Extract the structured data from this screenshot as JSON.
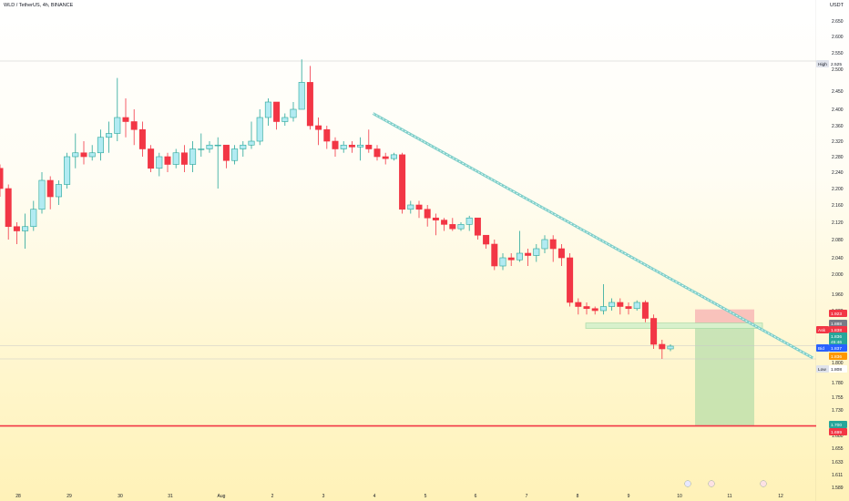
{
  "header": {
    "symbol_title": "WLD / TetherUS, 4h, BINANCE",
    "currency": "USDT"
  },
  "colors": {
    "up_fill": "#b2ebf2",
    "up_border": "#26a69a",
    "down_fill": "#f23645",
    "trendline": "#7ecfc9",
    "target_line": "#f23645",
    "stop_zone": "#f7b4b4",
    "profit_zone": "#9ed69e"
  },
  "chart_data": {
    "type": "candlestick",
    "y_ticks": [
      "2.650",
      "2.600",
      "2.550",
      "2.500",
      "2.450",
      "2.400",
      "2.360",
      "2.320",
      "2.280",
      "2.240",
      "2.200",
      "2.160",
      "2.120",
      "2.080",
      "2.040",
      "2.000",
      "1.960",
      "1.920",
      "1.880",
      "1.840",
      "1.800",
      "1.780",
      "1.755",
      "1.730",
      "1.705",
      "1.680",
      "1.655",
      "1.633",
      "1.611",
      "1.589"
    ],
    "x_ticks": [
      "28",
      "29",
      "30",
      "31",
      "Aug",
      "2",
      "3",
      "4",
      "5",
      "6",
      "7",
      "8",
      "9",
      "10",
      "11",
      "12"
    ],
    "price_labels": [
      {
        "tag": "High",
        "value": "2.525"
      },
      {
        "tag": "",
        "value": "1.923"
      },
      {
        "tag": "",
        "value": "1.888"
      },
      {
        "tag": "Ask",
        "value": "1.838"
      },
      {
        "tag": "",
        "value": "1.836"
      },
      {
        "tag": "",
        "value": "45:46"
      },
      {
        "tag": "Bid",
        "value": "1.837"
      },
      {
        "tag": "",
        "value": "1.836"
      },
      {
        "tag": "Low",
        "value": "1.808"
      },
      {
        "tag": "",
        "value": "1.700"
      },
      {
        "tag": "",
        "value": "1.699"
      }
    ],
    "candles": [
      {
        "o": 2.25,
        "h": 2.26,
        "c": 2.2,
        "l": 2.18
      },
      {
        "o": 2.2,
        "h": 2.21,
        "c": 2.11,
        "l": 2.08
      },
      {
        "o": 2.11,
        "h": 2.12,
        "c": 2.1,
        "l": 2.07
      },
      {
        "o": 2.1,
        "h": 2.14,
        "c": 2.11,
        "l": 2.06
      },
      {
        "o": 2.11,
        "h": 2.17,
        "c": 2.15,
        "l": 2.1
      },
      {
        "o": 2.15,
        "h": 2.24,
        "c": 2.22,
        "l": 2.14
      },
      {
        "o": 2.22,
        "h": 2.23,
        "c": 2.18,
        "l": 2.15
      },
      {
        "o": 2.18,
        "h": 2.22,
        "c": 2.21,
        "l": 2.16
      },
      {
        "o": 2.21,
        "h": 2.29,
        "c": 2.28,
        "l": 2.2
      },
      {
        "o": 2.28,
        "h": 2.34,
        "c": 2.29,
        "l": 2.25
      },
      {
        "o": 2.29,
        "h": 2.32,
        "c": 2.28,
        "l": 2.26
      },
      {
        "o": 2.28,
        "h": 2.31,
        "c": 2.29,
        "l": 2.27
      },
      {
        "o": 2.29,
        "h": 2.35,
        "c": 2.33,
        "l": 2.27
      },
      {
        "o": 2.33,
        "h": 2.37,
        "c": 2.34,
        "l": 2.29
      },
      {
        "o": 2.34,
        "h": 2.48,
        "c": 2.38,
        "l": 2.32
      },
      {
        "o": 2.38,
        "h": 2.43,
        "c": 2.37,
        "l": 2.33
      },
      {
        "o": 2.37,
        "h": 2.4,
        "c": 2.35,
        "l": 2.31
      },
      {
        "o": 2.35,
        "h": 2.37,
        "c": 2.3,
        "l": 2.28
      },
      {
        "o": 2.3,
        "h": 2.31,
        "c": 2.25,
        "l": 2.24
      },
      {
        "o": 2.25,
        "h": 2.29,
        "c": 2.28,
        "l": 2.23
      },
      {
        "o": 2.28,
        "h": 2.29,
        "c": 2.26,
        "l": 2.24
      },
      {
        "o": 2.26,
        "h": 2.3,
        "c": 2.29,
        "l": 2.25
      },
      {
        "o": 2.29,
        "h": 2.31,
        "c": 2.26,
        "l": 2.24
      },
      {
        "o": 2.26,
        "h": 2.32,
        "c": 2.3,
        "l": 2.24
      },
      {
        "o": 2.3,
        "h": 2.34,
        "c": 2.3,
        "l": 2.28
      },
      {
        "o": 2.3,
        "h": 2.32,
        "c": 2.31,
        "l": 2.29
      },
      {
        "o": 2.31,
        "h": 2.33,
        "c": 2.31,
        "l": 2.2
      },
      {
        "o": 2.31,
        "h": 2.31,
        "c": 2.27,
        "l": 2.25
      },
      {
        "o": 2.27,
        "h": 2.31,
        "c": 2.3,
        "l": 2.26
      },
      {
        "o": 2.3,
        "h": 2.32,
        "c": 2.31,
        "l": 2.28
      },
      {
        "o": 2.31,
        "h": 2.37,
        "c": 2.32,
        "l": 2.3
      },
      {
        "o": 2.32,
        "h": 2.4,
        "c": 2.38,
        "l": 2.31
      },
      {
        "o": 2.38,
        "h": 2.43,
        "c": 2.42,
        "l": 2.36
      },
      {
        "o": 2.42,
        "h": 2.42,
        "c": 2.37,
        "l": 2.35
      },
      {
        "o": 2.37,
        "h": 2.39,
        "c": 2.38,
        "l": 2.36
      },
      {
        "o": 2.38,
        "h": 2.42,
        "c": 2.4,
        "l": 2.37
      },
      {
        "o": 2.4,
        "h": 2.53,
        "c": 2.47,
        "l": 2.4
      },
      {
        "o": 2.47,
        "h": 2.51,
        "c": 2.36,
        "l": 2.35
      },
      {
        "o": 2.36,
        "h": 2.38,
        "c": 2.35,
        "l": 2.31
      },
      {
        "o": 2.35,
        "h": 2.36,
        "c": 2.32,
        "l": 2.3
      },
      {
        "o": 2.32,
        "h": 2.33,
        "c": 2.3,
        "l": 2.28
      },
      {
        "o": 2.3,
        "h": 2.32,
        "c": 2.31,
        "l": 2.29
      },
      {
        "o": 2.31,
        "h": 2.32,
        "c": 2.305,
        "l": 2.29
      },
      {
        "o": 2.305,
        "h": 2.33,
        "c": 2.31,
        "l": 2.27
      },
      {
        "o": 2.31,
        "h": 2.35,
        "c": 2.3,
        "l": 2.29
      },
      {
        "o": 2.3,
        "h": 2.31,
        "c": 2.28,
        "l": 2.27
      },
      {
        "o": 2.28,
        "h": 2.29,
        "c": 2.275,
        "l": 2.26
      },
      {
        "o": 2.275,
        "h": 2.29,
        "c": 2.285,
        "l": 2.27
      },
      {
        "o": 2.285,
        "h": 2.29,
        "c": 2.15,
        "l": 2.14
      },
      {
        "o": 2.15,
        "h": 2.17,
        "c": 2.16,
        "l": 2.14
      },
      {
        "o": 2.16,
        "h": 2.17,
        "c": 2.15,
        "l": 2.13
      },
      {
        "o": 2.15,
        "h": 2.16,
        "c": 2.13,
        "l": 2.11
      },
      {
        "o": 2.13,
        "h": 2.14,
        "c": 2.125,
        "l": 2.09
      },
      {
        "o": 2.125,
        "h": 2.13,
        "c": 2.115,
        "l": 2.1
      },
      {
        "o": 2.115,
        "h": 2.13,
        "c": 2.105,
        "l": 2.1
      },
      {
        "o": 2.105,
        "h": 2.12,
        "c": 2.115,
        "l": 2.1
      },
      {
        "o": 2.115,
        "h": 2.135,
        "c": 2.13,
        "l": 2.1
      },
      {
        "o": 2.13,
        "h": 2.13,
        "c": 2.09,
        "l": 2.08
      },
      {
        "o": 2.09,
        "h": 2.09,
        "c": 2.07,
        "l": 2.06
      },
      {
        "o": 2.07,
        "h": 2.08,
        "c": 2.02,
        "l": 2.01
      },
      {
        "o": 2.02,
        "h": 2.05,
        "c": 2.04,
        "l": 2.01
      },
      {
        "o": 2.04,
        "h": 2.05,
        "c": 2.035,
        "l": 2.02
      },
      {
        "o": 2.035,
        "h": 2.1,
        "c": 2.05,
        "l": 2.03
      },
      {
        "o": 2.05,
        "h": 2.06,
        "c": 2.045,
        "l": 2.02
      },
      {
        "o": 2.045,
        "h": 2.07,
        "c": 2.06,
        "l": 2.03
      },
      {
        "o": 2.06,
        "h": 2.09,
        "c": 2.08,
        "l": 2.05
      },
      {
        "o": 2.08,
        "h": 2.09,
        "c": 2.06,
        "l": 2.03
      },
      {
        "o": 2.06,
        "h": 2.07,
        "c": 2.04,
        "l": 2.02
      },
      {
        "o": 2.04,
        "h": 2.05,
        "c": 1.94,
        "l": 1.93
      },
      {
        "o": 1.94,
        "h": 1.95,
        "c": 1.93,
        "l": 1.91
      },
      {
        "o": 1.93,
        "h": 1.94,
        "c": 1.925,
        "l": 1.91
      },
      {
        "o": 1.925,
        "h": 1.93,
        "c": 1.92,
        "l": 1.91
      },
      {
        "o": 1.92,
        "h": 1.98,
        "c": 1.93,
        "l": 1.91
      },
      {
        "o": 1.93,
        "h": 1.95,
        "c": 1.94,
        "l": 1.92
      },
      {
        "o": 1.94,
        "h": 1.95,
        "c": 1.93,
        "l": 1.91
      },
      {
        "o": 1.93,
        "h": 1.94,
        "c": 1.925,
        "l": 1.91
      },
      {
        "o": 1.925,
        "h": 1.945,
        "c": 1.94,
        "l": 1.92
      },
      {
        "o": 1.94,
        "h": 1.945,
        "c": 1.9,
        "l": 1.89
      },
      {
        "o": 1.9,
        "h": 1.91,
        "c": 1.84,
        "l": 1.83
      },
      {
        "o": 1.84,
        "h": 1.85,
        "c": 1.83,
        "l": 1.808
      },
      {
        "o": 1.83,
        "h": 1.84,
        "c": 1.836,
        "l": 1.825
      }
    ],
    "trendline": {
      "start": {
        "candle": 44.5,
        "price": 2.39
      },
      "end": {
        "candle": 97,
        "price": 1.81
      }
    },
    "position": {
      "stop": 1.923,
      "entry_top": 1.888,
      "entry_bottom": 1.875,
      "target": 1.7
    },
    "horizontal_lines": [
      {
        "price": 2.525,
        "style": "high"
      },
      {
        "price": 1.837,
        "style": "bid"
      },
      {
        "price": 1.808,
        "style": "low"
      },
      {
        "price": 1.7,
        "style": "target"
      }
    ]
  }
}
